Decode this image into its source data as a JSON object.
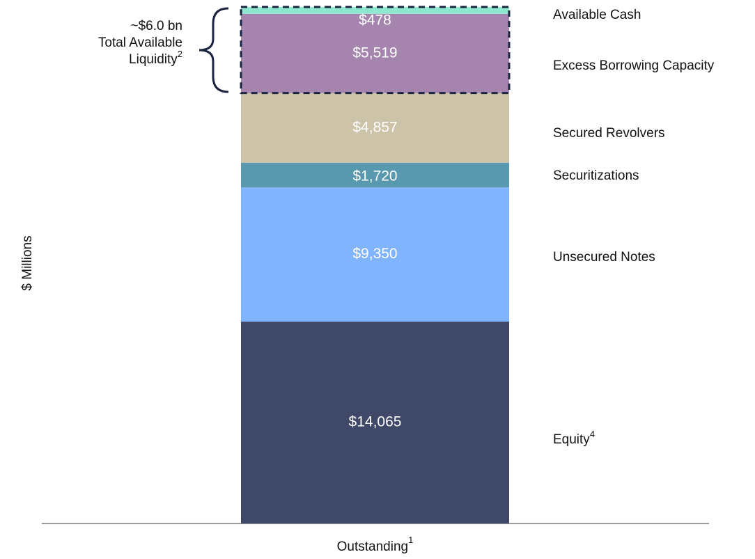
{
  "chart_data": {
    "type": "stacked_bar",
    "y_label": "$ Millions",
    "categories": [
      "Outstanding"
    ],
    "category_footnote": "1",
    "series": [
      {
        "name": "Equity",
        "footnote": "4",
        "color": "#404868",
        "values": [
          14065
        ],
        "value_labels": [
          "$14,065"
        ]
      },
      {
        "name": "Unsecured Notes",
        "color": "#80b4ff",
        "values": [
          9350
        ],
        "value_labels": [
          "$9,350"
        ]
      },
      {
        "name": "Securitizations",
        "color": "#5899b0",
        "values": [
          1720
        ],
        "value_labels": [
          "$1,720"
        ]
      },
      {
        "name": "Secured Revolvers",
        "color": "#cdc3a8",
        "values": [
          4857
        ],
        "value_labels": [
          "$4,857"
        ]
      },
      {
        "name": "Excess Borrowing Capacity",
        "color": "#a585ae",
        "values": [
          5519
        ],
        "value_labels": [
          "$5,519"
        ]
      },
      {
        "name": "Available Cash",
        "color": "#8ee8d0",
        "values": [
          478
        ],
        "value_labels": [
          "$478"
        ]
      }
    ],
    "annotation": {
      "lines": [
        "~$6.0 bn",
        "Total Available",
        "Liquidity"
      ],
      "footnote": "2"
    }
  }
}
